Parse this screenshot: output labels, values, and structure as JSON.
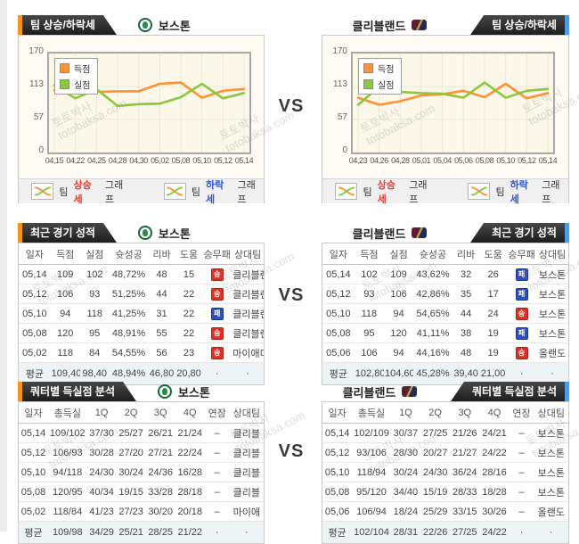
{
  "page": {
    "vs_label": "VS",
    "watermark": {
      "line1": "토토박사",
      "line2": "totobaksa.com"
    }
  },
  "teams": {
    "left": {
      "name": "보스톤"
    },
    "right": {
      "name": "클리블랜드"
    }
  },
  "colors": {
    "accent_orange": "#f7941d",
    "accent_blue": "#4a9de4",
    "line_orange": "#ff9233",
    "line_green": "#8dc63f",
    "win_badge": "#dd3327",
    "loss_badge": "#2b4fc8",
    "rise_text": "#e8392e",
    "fall_text": "#2b55d4"
  },
  "trend": {
    "tab_label": "팀 상승/하락세",
    "legend_buttons": [
      {
        "prefix": "팀",
        "word": "상승세",
        "suffix": "그래프"
      },
      {
        "prefix": "팀",
        "word": "하락세",
        "suffix": "그래프"
      }
    ]
  },
  "recent": {
    "tab_label": "최근 경기 성적",
    "columns": [
      "일자",
      "득점",
      "실점",
      "슛성공",
      "리바",
      "도움",
      "승무패",
      "상대팀"
    ],
    "left_rows": [
      {
        "cells": [
          "05,14",
          "109",
          "102",
          "48,72%",
          "48",
          "15"
        ],
        "result": "승",
        "opp": "클리블랜"
      },
      {
        "cells": [
          "05,12",
          "106",
          "93",
          "51,25%",
          "44",
          "22"
        ],
        "result": "승",
        "opp": "클리블랜"
      },
      {
        "cells": [
          "05,10",
          "94",
          "118",
          "41,25%",
          "31",
          "22"
        ],
        "result": "패",
        "opp": "클리블랜"
      },
      {
        "cells": [
          "05,08",
          "120",
          "95",
          "48,91%",
          "55",
          "22"
        ],
        "result": "승",
        "opp": "클리블랜"
      },
      {
        "cells": [
          "05,02",
          "118",
          "84",
          "54,55%",
          "56",
          "23"
        ],
        "result": "승",
        "opp": "마이애미"
      },
      {
        "cells": [
          "평균",
          "109,40",
          "98,40",
          "48,94%",
          "46,80",
          "20,80"
        ],
        "result": "·",
        "opp": "·",
        "avg": true
      }
    ],
    "right_rows": [
      {
        "cells": [
          "05,14",
          "102",
          "109",
          "43,62%",
          "32",
          "26"
        ],
        "result": "패",
        "opp": "보스톤"
      },
      {
        "cells": [
          "05,12",
          "93",
          "106",
          "42,86%",
          "35",
          "17"
        ],
        "result": "패",
        "opp": "보스톤"
      },
      {
        "cells": [
          "05,10",
          "118",
          "94",
          "54,65%",
          "44",
          "24"
        ],
        "result": "승",
        "opp": "보스톤"
      },
      {
        "cells": [
          "05,08",
          "95",
          "120",
          "41,11%",
          "38",
          "19"
        ],
        "result": "패",
        "opp": "보스톤"
      },
      {
        "cells": [
          "05,06",
          "106",
          "94",
          "44,16%",
          "48",
          "19"
        ],
        "result": "승",
        "opp": "올랜도"
      },
      {
        "cells": [
          "평균",
          "102,80",
          "104,60",
          "45,28%",
          "39,40",
          "21,00"
        ],
        "result": "·",
        "opp": "·",
        "avg": true
      }
    ]
  },
  "quarter": {
    "tab_label": "쿼터별 득실점 분석",
    "columns": [
      "일자",
      "총득실",
      "1Q",
      "2Q",
      "3Q",
      "4Q",
      "연장",
      "상대팀"
    ],
    "left_rows": [
      {
        "cells": [
          "05,14",
          "109/102",
          "37/30",
          "25/27",
          "26/21",
          "21/24",
          "–"
        ],
        "opp": "클리블"
      },
      {
        "cells": [
          "05,12",
          "106/93",
          "30/28",
          "27/20",
          "27/21",
          "22/24",
          "–"
        ],
        "opp": "클리블"
      },
      {
        "cells": [
          "05,10",
          "94/118",
          "24/30",
          "30/24",
          "24/36",
          "16/28",
          "–"
        ],
        "opp": "클리블"
      },
      {
        "cells": [
          "05,08",
          "120/95",
          "40/34",
          "19/15",
          "33/28",
          "28/18",
          "–"
        ],
        "opp": "클리블"
      },
      {
        "cells": [
          "05,02",
          "118/84",
          "41/23",
          "27/23",
          "30/20",
          "20/18",
          "–"
        ],
        "opp": "마이애"
      },
      {
        "cells": [
          "평균",
          "109/98",
          "34/29",
          "25/21",
          "28/25",
          "21/22",
          "·"
        ],
        "opp": "·",
        "avg": true
      }
    ],
    "right_rows": [
      {
        "cells": [
          "05,14",
          "102/109",
          "30/37",
          "27/25",
          "21/26",
          "24/21",
          "–"
        ],
        "opp": "보스톤"
      },
      {
        "cells": [
          "05,12",
          "93/106",
          "28/30",
          "20/27",
          "21/27",
          "24/22",
          "–"
        ],
        "opp": "보스톤"
      },
      {
        "cells": [
          "05,10",
          "118/94",
          "30/24",
          "24/30",
          "36/24",
          "28/16",
          "–"
        ],
        "opp": "보스톤"
      },
      {
        "cells": [
          "05,08",
          "95/120",
          "34/40",
          "15/19",
          "28/33",
          "18/28",
          "–"
        ],
        "opp": "보스톤"
      },
      {
        "cells": [
          "05,06",
          "106/94",
          "18/24",
          "25/29",
          "33/15",
          "30/26",
          "–"
        ],
        "opp": "올랜도"
      },
      {
        "cells": [
          "평균",
          "102/104",
          "28/31",
          "22/26",
          "27/25",
          "24/22",
          "·"
        ],
        "opp": "·",
        "avg": true
      }
    ]
  },
  "chart_data": [
    {
      "type": "line",
      "title": "보스톤 팀 상승/하락세",
      "x": [
        "04,15",
        "04,22",
        "04,25",
        "04,28",
        "04,30",
        "05,02",
        "05,08",
        "05,10",
        "05,12",
        "05,14"
      ],
      "series": [
        {
          "name": "득점",
          "color": "#ff9233",
          "values": [
            107,
            102,
            104,
            105,
            105,
            118,
            120,
            94,
            106,
            109
          ]
        },
        {
          "name": "실점",
          "color": "#8dc63f",
          "values": [
            115,
            93,
            109,
            80,
            83,
            84,
            95,
            118,
            93,
            102
          ]
        }
      ],
      "ylim": [
        0,
        170
      ],
      "yticks": [
        0,
        57,
        113,
        170
      ],
      "grid": true,
      "legend_position": "top-left"
    },
    {
      "type": "line",
      "title": "클리블랜드 팀 상승/하락세",
      "x": [
        "04,23",
        "04,26",
        "04,28",
        "05,01",
        "05,04",
        "05,06",
        "05,08",
        "05,10",
        "05,12",
        "05,14"
      ],
      "series": [
        {
          "name": "득점",
          "color": "#ff9233",
          "values": [
            94,
            82,
            88,
            98,
            100,
            106,
            95,
            118,
            93,
            102
          ]
        },
        {
          "name": "실점",
          "color": "#8dc63f",
          "values": [
            82,
            113,
            104,
            102,
            101,
            94,
            120,
            94,
            106,
            109
          ]
        }
      ],
      "ylim": [
        0,
        170
      ],
      "yticks": [
        0,
        57,
        113,
        170
      ],
      "grid": true,
      "legend_position": "top-left"
    }
  ]
}
